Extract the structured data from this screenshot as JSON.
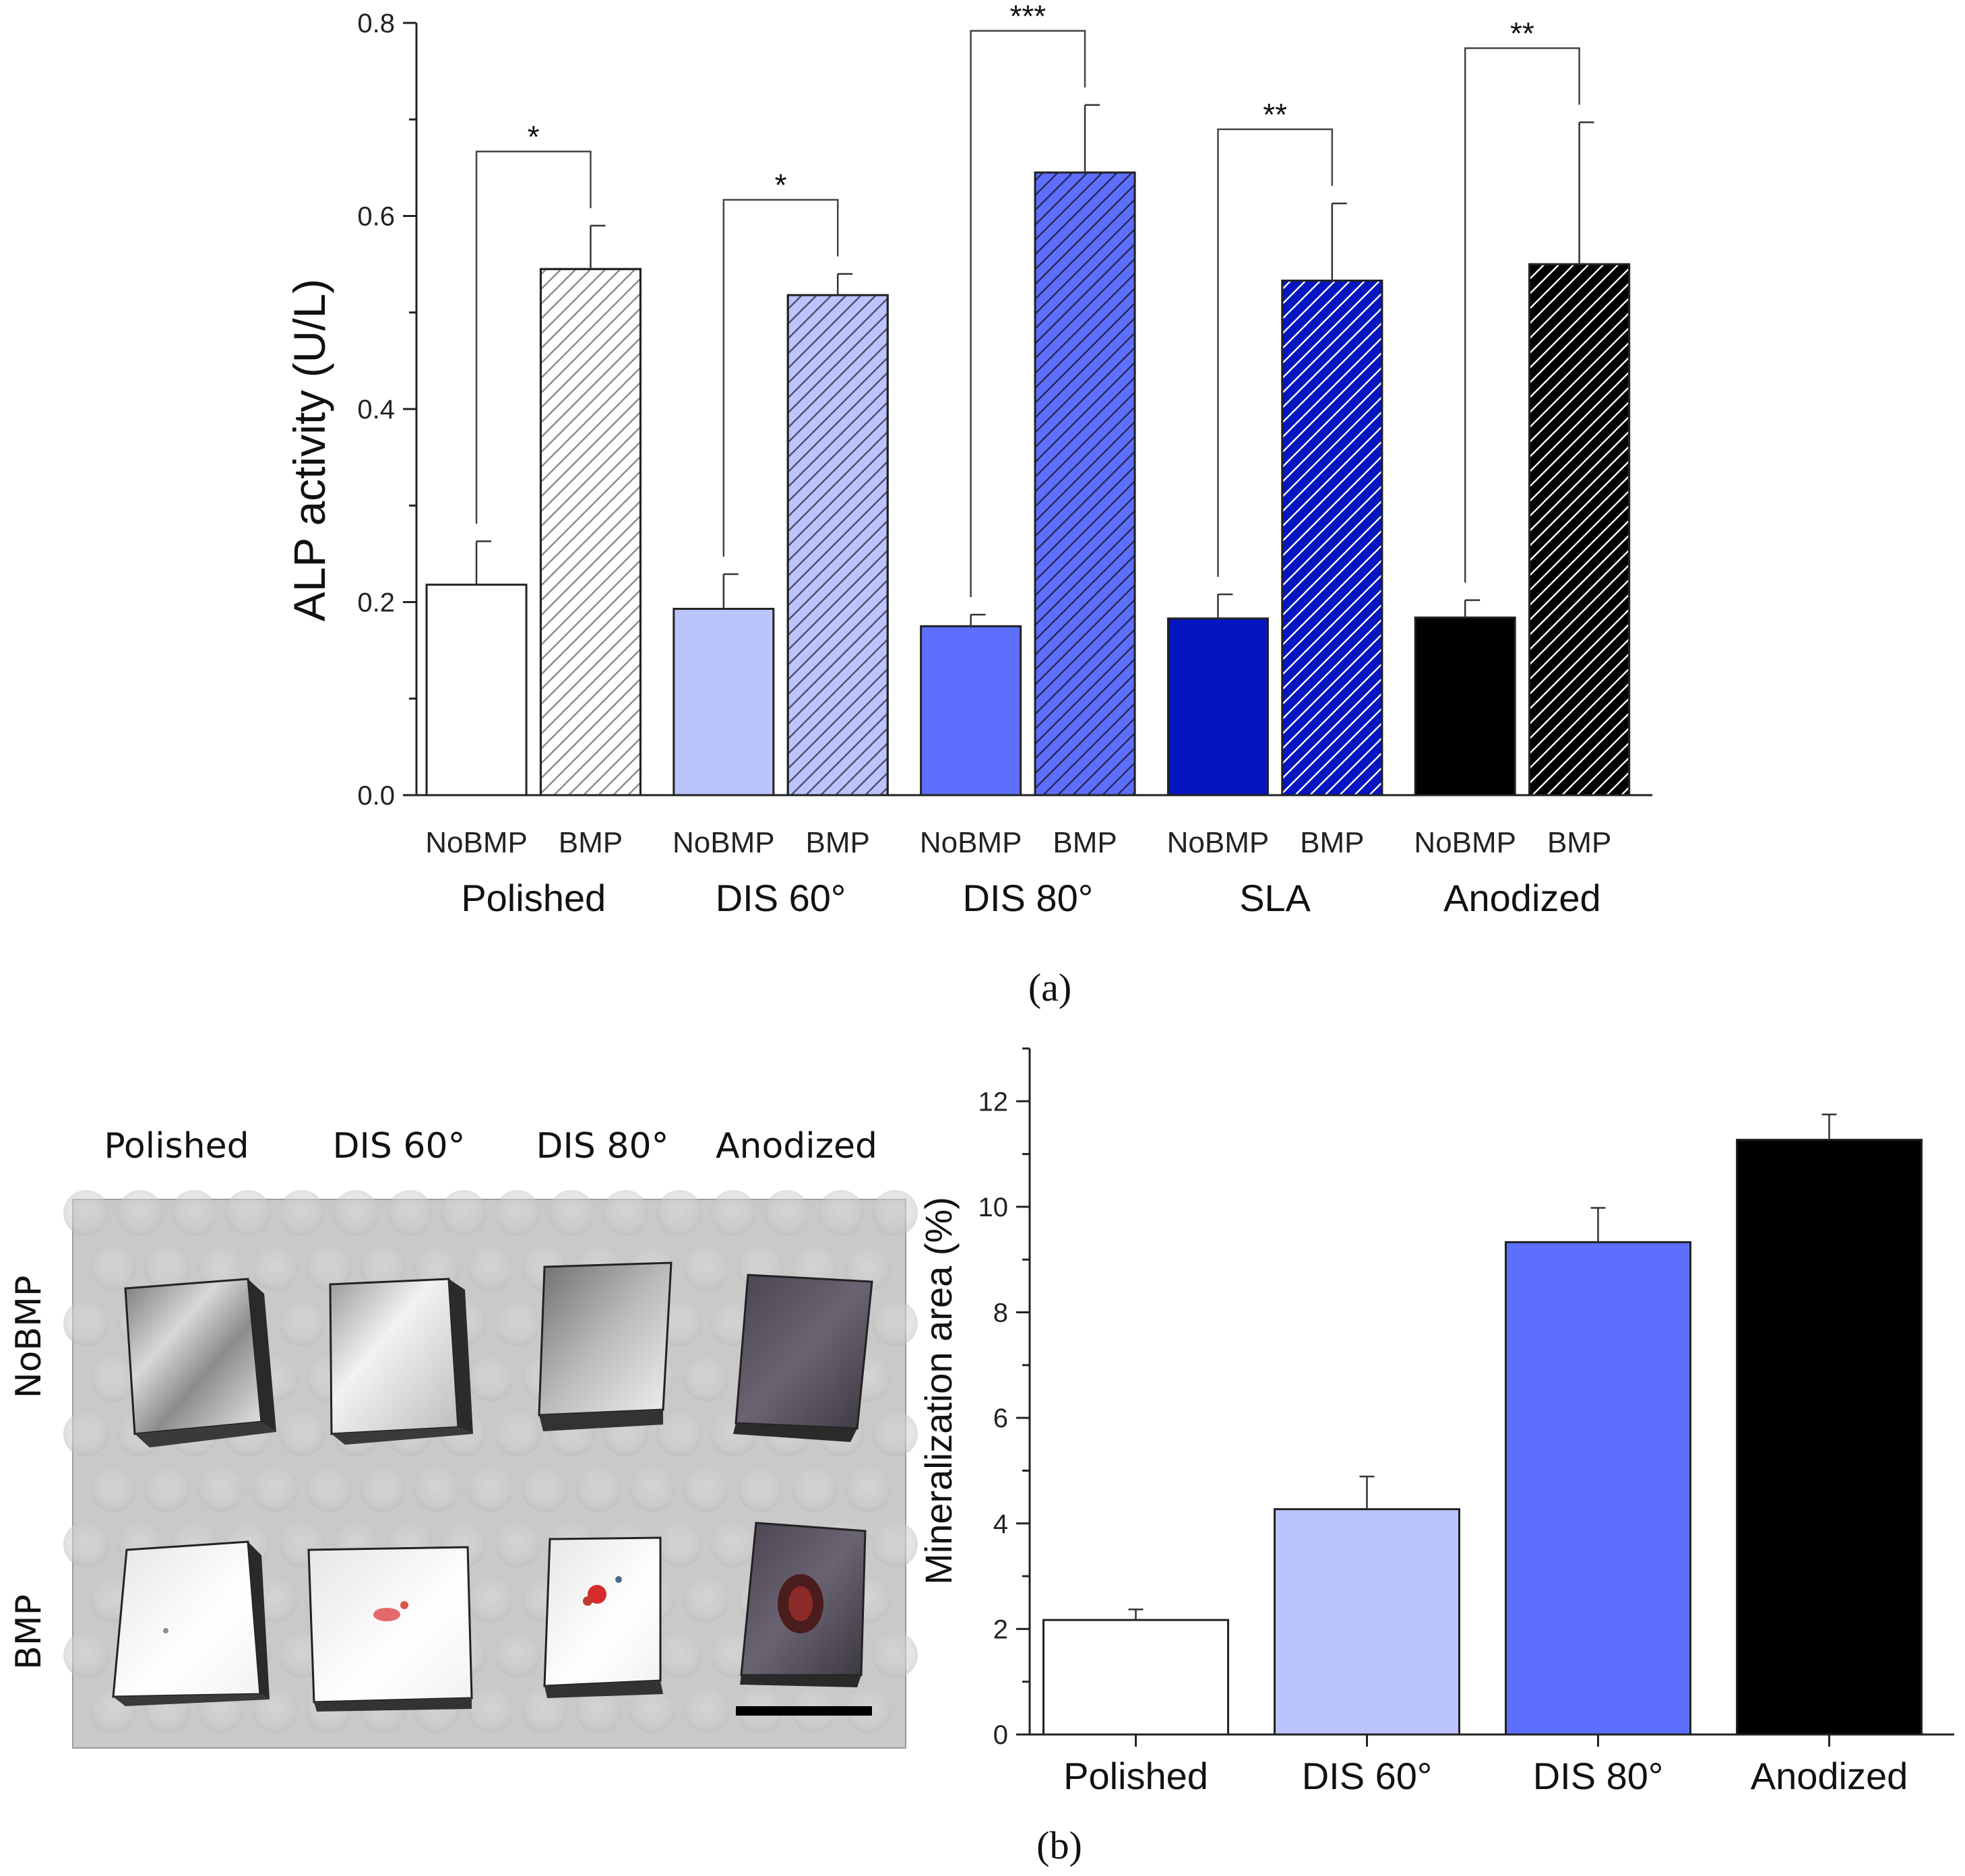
{
  "chart_data": [
    {
      "id": "a",
      "type": "bar",
      "panel_label": "(a)",
      "ylabel": "ALP activity (U/L)",
      "ylim": [
        0,
        0.8
      ],
      "yticks": [
        "0.0",
        "0.2",
        "0.4",
        "0.6",
        "0.8"
      ],
      "groups": [
        {
          "name": "Polished",
          "bars": [
            {
              "label": "NoBMP",
              "value": 0.218,
              "error": 0.045,
              "color": "#ffffff",
              "hatch": false,
              "hatch_color": "#555555"
            },
            {
              "label": "BMP",
              "value": 0.545,
              "error": 0.045,
              "color": "#ffffff",
              "hatch": true,
              "hatch_color": "#888888"
            }
          ],
          "significance": "*"
        },
        {
          "name": "DIS 60°",
          "bars": [
            {
              "label": "NoBMP",
              "value": 0.193,
              "error": 0.036,
              "color": "#bcc4fd",
              "hatch": false,
              "hatch_color": "#555555"
            },
            {
              "label": "BMP",
              "value": 0.518,
              "error": 0.022,
              "color": "#bcc4fd",
              "hatch": true,
              "hatch_color": "#555555"
            }
          ],
          "significance": "*"
        },
        {
          "name": "DIS 80°",
          "bars": [
            {
              "label": "NoBMP",
              "value": 0.175,
              "error": 0.012,
              "color": "#5d6ffe",
              "hatch": false,
              "hatch_color": "#333333"
            },
            {
              "label": "BMP",
              "value": 0.645,
              "error": 0.07,
              "color": "#5d6ffe",
              "hatch": true,
              "hatch_color": "#333333"
            }
          ],
          "significance": "***"
        },
        {
          "name": "SLA",
          "bars": [
            {
              "label": "NoBMP",
              "value": 0.183,
              "error": 0.025,
              "color": "#0515c0",
              "hatch": false,
              "hatch_color": "#ffffff"
            },
            {
              "label": "BMP",
              "value": 0.533,
              "error": 0.08,
              "color": "#0515c0",
              "hatch": true,
              "hatch_color": "#ffffff"
            }
          ],
          "significance": "**"
        },
        {
          "name": "Anodized",
          "bars": [
            {
              "label": "NoBMP",
              "value": 0.184,
              "error": 0.018,
              "color": "#000000",
              "hatch": false,
              "hatch_color": "#ffffff"
            },
            {
              "label": "BMP",
              "value": 0.55,
              "error": 0.147,
              "color": "#000000",
              "hatch": true,
              "hatch_color": "#ffffff"
            }
          ],
          "significance": "**"
        }
      ]
    },
    {
      "id": "b",
      "type": "bar",
      "panel_label": "(b)",
      "ylabel": "Mineralization area (%)",
      "ylim": [
        0,
        13
      ],
      "yticks": [
        "0",
        "2",
        "4",
        "6",
        "8",
        "10",
        "12"
      ],
      "categories": [
        "Polished",
        "DIS 60°",
        "DIS 80°",
        "Anodized"
      ],
      "values": [
        2.17,
        4.27,
        9.33,
        11.27
      ],
      "errors": [
        0.2,
        0.62,
        0.65,
        0.48
      ],
      "colors": [
        "#ffffff",
        "#bcc4fd",
        "#5d6ffe",
        "#000000"
      ]
    }
  ],
  "photo": {
    "column_labels": [
      "Polished",
      "DIS 60°",
      "DIS 80°",
      "Anodized"
    ],
    "row_labels": [
      "NoBMP",
      "BMP"
    ]
  }
}
